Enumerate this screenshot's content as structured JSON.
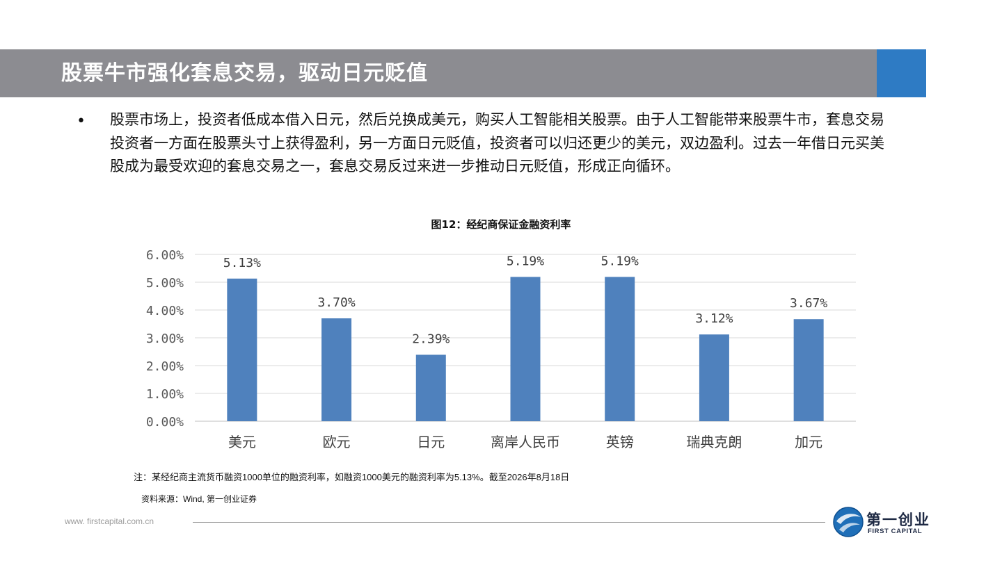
{
  "header": {
    "title": "股票牛市强化套息交易，驱动日元贬值",
    "bar_color": "#8c8c91",
    "accent_color": "#2e7bc4"
  },
  "body": {
    "bullet": "•",
    "paragraph": "股票市场上，投资者低成本借入日元，然后兑换成美元，购买人工智能相关股票。由于人工智能带来股票牛市，套息交易投资者一方面在股票头寸上获得盈利，另一方面日元贬值，投资者可以归还更少的美元，双边盈利。过去一年借日元买美股成为最受欢迎的套息交易之一，套息交易反过来进一步推动日元贬值，形成正向循环。"
  },
  "chart_data": {
    "type": "bar",
    "title": "图12：经纪商保证金融资利率",
    "categories": [
      "美元",
      "欧元",
      "日元",
      "离岸人民币",
      "英镑",
      "瑞典克朗",
      "加元"
    ],
    "values": [
      5.13,
      3.7,
      2.39,
      5.19,
      5.19,
      3.12,
      3.67
    ],
    "value_labels": [
      "5.13%",
      "3.70%",
      "2.39%",
      "5.19%",
      "5.19%",
      "3.12%",
      "3.67%"
    ],
    "yticks": [
      "0.00%",
      "1.00%",
      "2.00%",
      "3.00%",
      "4.00%",
      "5.00%",
      "6.00%"
    ],
    "ylim": [
      0,
      6
    ],
    "xlabel": "",
    "ylabel": "",
    "grid": true,
    "bar_color": "#4f81bd"
  },
  "notes": {
    "note": "注：某经纪商主流货币融资1000单位的融资利率，如融资1000美元的融资利率为5.13%。截至2026年8月18日",
    "source": "资料来源：Wind, 第一创业证券"
  },
  "footer": {
    "url": "www. firstcapital.com.cn",
    "logo_cn": "第一创业",
    "logo_en": "FIRST CAPITAL"
  }
}
